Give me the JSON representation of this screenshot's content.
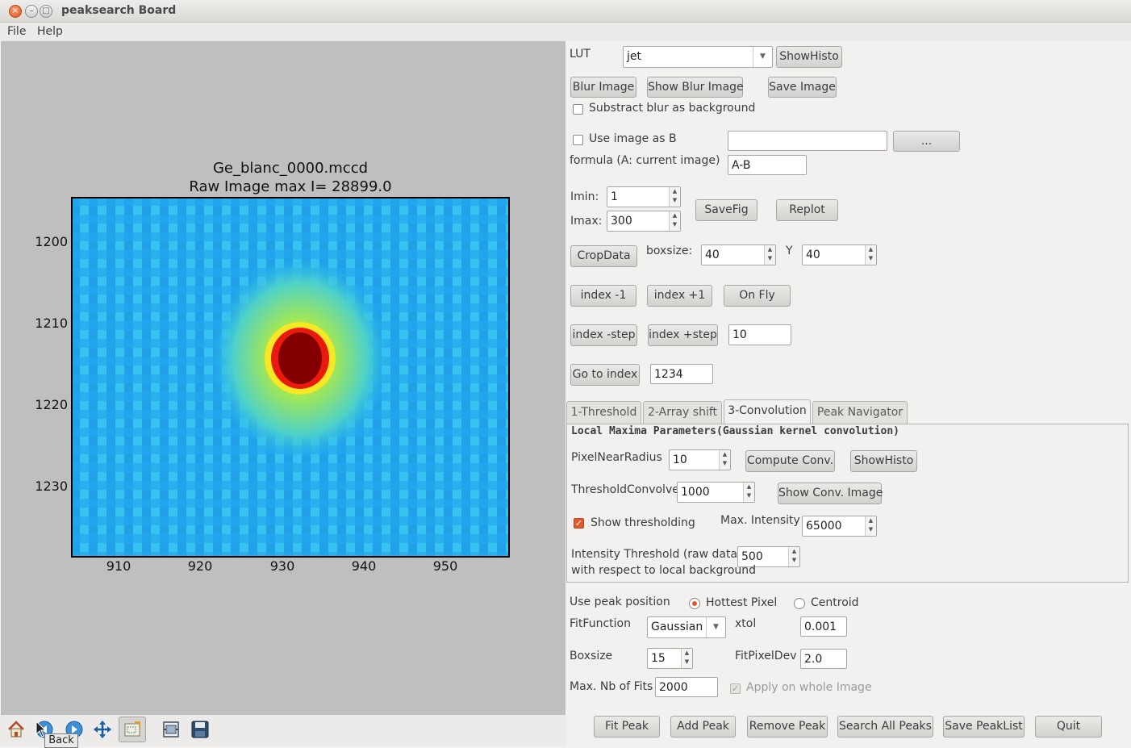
{
  "window": {
    "title": "peaksearch Board",
    "close": "×",
    "minimize": "–",
    "maximize": "□"
  },
  "menu": {
    "file": "File",
    "help": "Help"
  },
  "plot": {
    "title_line1": "Ge_blanc_0000.mccd",
    "title_line2": "Raw Image  max I= 28899.0",
    "x_ticks": [
      "910",
      "920",
      "930",
      "940",
      "950"
    ],
    "y_ticks": [
      "1200",
      "1210",
      "1220",
      "1230"
    ]
  },
  "toolbar": {
    "tooltip": "Back",
    "icons": [
      "home-icon",
      "back-icon",
      "forward-icon",
      "pan-icon",
      "zoom-icon",
      "subplots-icon",
      "save-icon"
    ]
  },
  "controls": {
    "lut_label": "LUT",
    "lut_value": "jet",
    "showhisto": "ShowHisto",
    "blur_image": "Blur Image",
    "show_blur_image": "Show Blur Image",
    "save_image": "Save Image",
    "subtract_blur": "Substract blur as background",
    "use_image_as_b": "Use image as B",
    "image_b_path": "",
    "browse": "...",
    "formula_label": "formula (A: current image)",
    "formula_value": "A-B",
    "imin_label": "Imin:",
    "imin_value": "1",
    "imax_label": "Imax:",
    "imax_value": "300",
    "savefig": "SaveFig",
    "replot": "Replot",
    "cropdata": "CropData",
    "boxsize_label": "boxsize:",
    "boxsize_value": "40",
    "y_label": "Y",
    "y_value": "40",
    "index_minus1": "index -1",
    "index_plus1": "index +1",
    "on_fly": "On Fly",
    "index_minus_step": "index -step",
    "index_plus_step": "index +step",
    "step_value": "10",
    "go_to_index": "Go to index",
    "index_value": "1234"
  },
  "tabs": [
    "1-Threshold",
    "2-Array shift",
    "3-Convolution",
    "Peak Navigator"
  ],
  "convolution": {
    "heading": "Local Maxima Parameters(Gaussian kernel convolution)",
    "pixel_near_radius_label": "PixelNearRadius",
    "pixel_near_radius_value": "10",
    "compute_conv": "Compute Conv.",
    "showhisto": "ShowHisto",
    "threshold_convolve_label": "ThresholdConvolve",
    "threshold_convolve_value": "1000",
    "show_conv_image": "Show Conv. Image",
    "show_thresholding": "Show thresholding",
    "max_intensity_label": "Max. Intensity",
    "max_intensity_value": "65000",
    "intensity_threshold_label": "Intensity Threshold (raw data)",
    "intensity_threshold_value": "500",
    "intensity_threshold_sub": "with respect to local background"
  },
  "fit": {
    "use_peak_position": "Use peak position",
    "hottest_pixel": "Hottest Pixel",
    "centroid": "Centroid",
    "fit_function_label": "FitFunction",
    "fit_function_value": "Gaussian",
    "xtol_label": "xtol",
    "xtol_value": "0.001",
    "boxsize_label": "Boxsize",
    "boxsize_value": "15",
    "fitpixeldev_label": "FitPixelDev",
    "fitpixeldev_value": "2.0",
    "max_nb_fits_label": "Max. Nb of Fits",
    "max_nb_fits_value": "2000",
    "apply_whole_image": "Apply on whole Image"
  },
  "actions": {
    "fit_peak": "Fit Peak",
    "add_peak": "Add Peak",
    "remove_peak": "Remove Peak",
    "search_all_peaks": "Search All Peaks",
    "save_peaklist": "Save PeakList",
    "quit": "Quit"
  }
}
